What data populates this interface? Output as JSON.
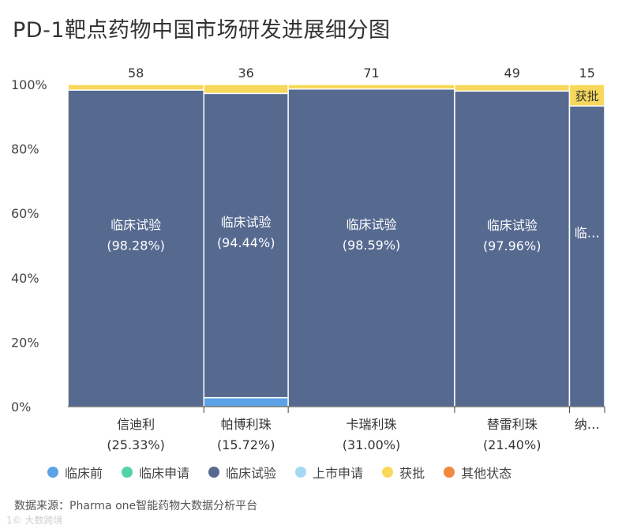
{
  "title": "PD-1靶点药物中国市场研发进展细分图",
  "source": "数据来源：Pharma one智能药物大数据分析平台",
  "watermark": "1© 大数跨境",
  "colors": {
    "临床前": "#5ba3e6",
    "临床申请": "#52d2a9",
    "临床试验": "#566a90",
    "上市申请": "#a7d8f2",
    "获批": "#f7d85a",
    "其他状态": "#f0883e"
  },
  "legend": [
    {
      "label": "临床前",
      "color": "#5ba3e6"
    },
    {
      "label": "临床申请",
      "color": "#52d2a9"
    },
    {
      "label": "临床试验",
      "color": "#566a90"
    },
    {
      "label": "上市申请",
      "color": "#a7d8f2"
    },
    {
      "label": "获批",
      "color": "#f7d85a"
    },
    {
      "label": "其他状态",
      "color": "#f0883e"
    }
  ],
  "chart_data": {
    "type": "bar",
    "subtype": "marimekko",
    "title": "PD-1靶点药物中国市场研发进展细分图",
    "ylim": [
      0,
      100
    ],
    "yticks": [
      "0%",
      "20%",
      "40%",
      "60%",
      "80%",
      "100%"
    ],
    "categories": [
      {
        "name": "信迪利",
        "share_label": "(25.33%)",
        "share": 25.33,
        "total": 58,
        "segments": [
          {
            "status": "临床试验",
            "pct": 98.28,
            "label": "临床试验",
            "pct_label": "(98.28%)"
          },
          {
            "status": "获批",
            "pct": 1.72
          }
        ]
      },
      {
        "name": "帕博利珠",
        "share_label": "(15.72%)",
        "share": 15.72,
        "total": 36,
        "segments": [
          {
            "status": "临床前",
            "pct": 2.78
          },
          {
            "status": "临床试验",
            "pct": 94.44,
            "label": "临床试验",
            "pct_label": "(94.44%)"
          },
          {
            "status": "获批",
            "pct": 2.78
          }
        ]
      },
      {
        "name": "卡瑞利珠",
        "share_label": "(31.00%)",
        "share": 31.0,
        "total": 71,
        "segments": [
          {
            "status": "临床试验",
            "pct": 98.59,
            "label": "临床试验",
            "pct_label": "(98.59%)"
          },
          {
            "status": "获批",
            "pct": 1.41
          }
        ]
      },
      {
        "name": "替雷利珠",
        "share_label": "(21.40%)",
        "share": 21.4,
        "total": 49,
        "segments": [
          {
            "status": "临床试验",
            "pct": 97.96,
            "label": "临床试验",
            "pct_label": "(97.96%)"
          },
          {
            "status": "获批",
            "pct": 2.04
          }
        ]
      },
      {
        "name": "纳…",
        "share_label": "",
        "share": 6.55,
        "total": 15,
        "segments": [
          {
            "status": "临床试验",
            "pct": 93.33,
            "label": "临…",
            "pct_label": ""
          },
          {
            "status": "获批",
            "pct": 6.67,
            "label": "获批"
          }
        ]
      }
    ]
  }
}
